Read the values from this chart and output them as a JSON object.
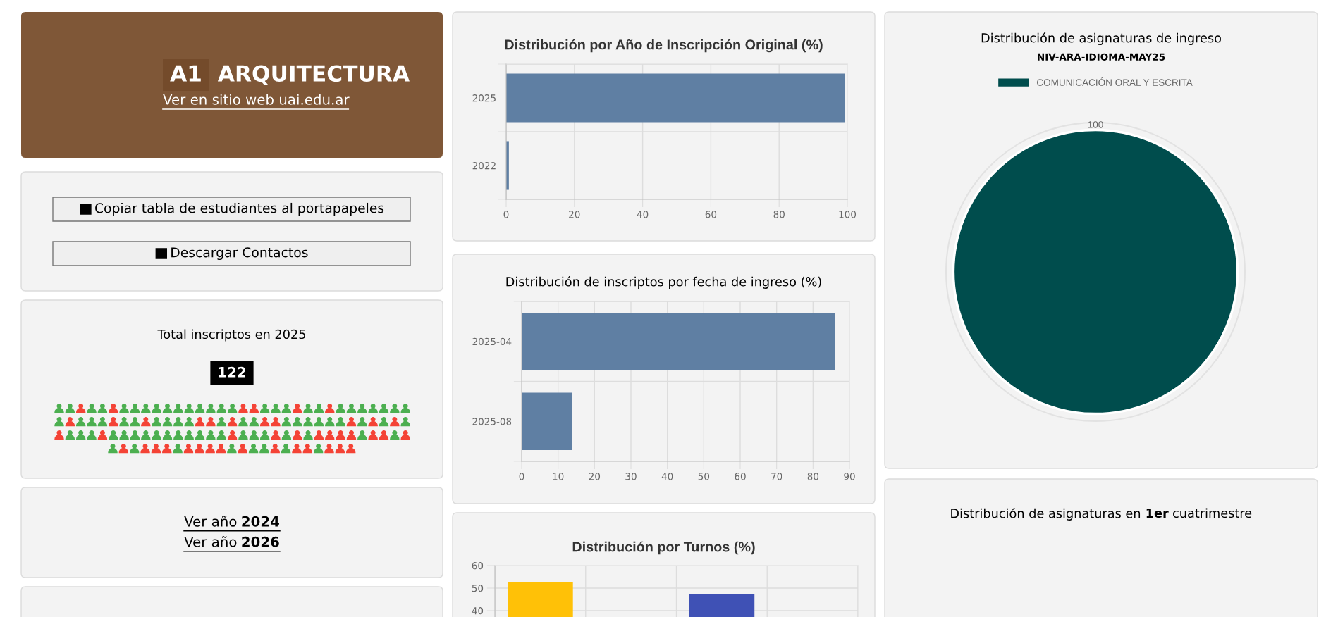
{
  "chart_data": [
    {
      "type": "other",
      "annotations": [
        "A1",
        "ARQUITECTURA",
        "Ver en sitio web uai.edu.ar"
      ]
    },
    {
      "type": "other",
      "annotations": [
        "Copiar tabla de estudiantes al portapapeles",
        "Descargar Contactos"
      ]
    },
    {
      "type": "other",
      "title": "Total inscriptos en 2025",
      "annotations": [
        "122"
      ]
    },
    {
      "type": "other",
      "annotations": [
        "Ver año 2024",
        "Ver año 2026"
      ]
    },
    {
      "type": "bar",
      "orientation": "horizontal",
      "title": "Distribución por Año de Inscripción Original (%)",
      "categories": [
        "2025",
        "2022"
      ],
      "values": [
        99.2,
        0.8
      ],
      "color": "#5f7fa3",
      "xlim": [
        0,
        100
      ],
      "xticks": [
        0,
        20,
        40,
        60,
        80,
        100
      ],
      "grid": true
    },
    {
      "type": "bar",
      "orientation": "horizontal",
      "title": "Distribución de inscriptos por fecha de ingreso (%)",
      "categories": [
        "2025-04",
        "2025-08"
      ],
      "values": [
        86.1,
        13.9
      ],
      "color": "#5f7fa3",
      "xlim": [
        0,
        90
      ],
      "xticks": [
        0,
        10,
        20,
        30,
        40,
        50,
        60,
        70,
        80,
        90
      ],
      "grid": true
    },
    {
      "type": "bar",
      "title": "Distribución por Turnos (%)",
      "categories": [
        null,
        null,
        null,
        null
      ],
      "values": [
        52.5,
        null,
        47.5,
        null
      ],
      "colors": [
        "#ffc107",
        null,
        "#3f51b5",
        null
      ],
      "ylim": [
        0,
        60
      ],
      "yticks": [
        40,
        50,
        60
      ],
      "grid": true
    },
    {
      "type": "pie",
      "title": "Distribución de asignaturas de ingreso",
      "subtitle": "NIV-ARA-IDIOMA-MAY25",
      "categories": [
        "COMUNICACIÓN ORAL Y ESCRITA"
      ],
      "values": [
        100
      ],
      "colors": [
        "#004d4d"
      ],
      "legend": "top",
      "data_labels": true
    },
    {
      "type": "other",
      "title": "Distribución de asignaturas en 1er cuatrimestre"
    }
  ]
}
